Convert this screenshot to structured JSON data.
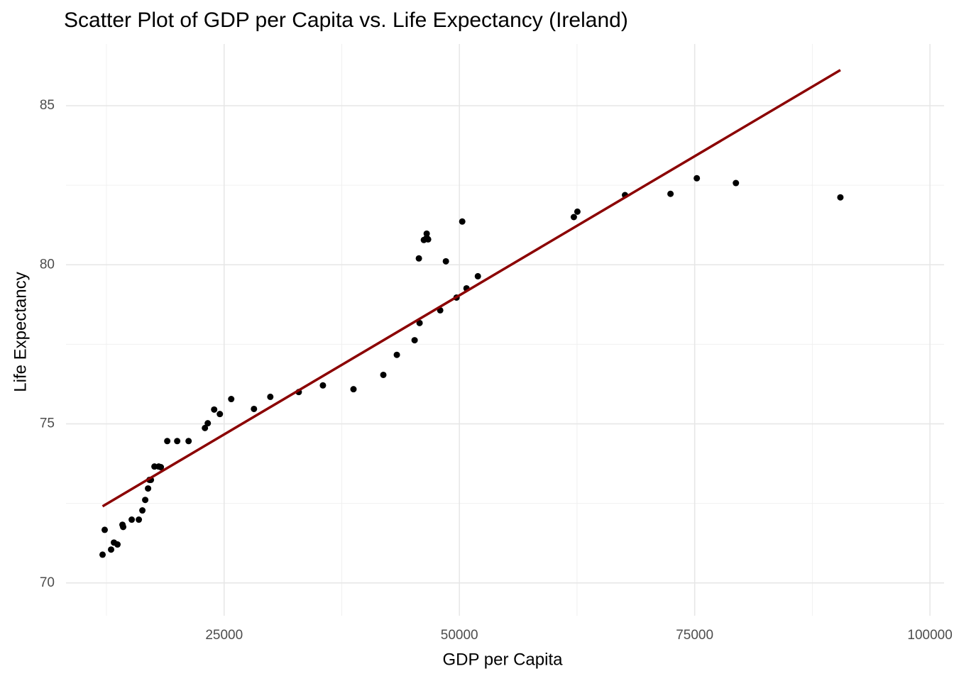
{
  "chart_data": {
    "type": "scatter",
    "title": "Scatter Plot of GDP per Capita vs. Life Expectancy (Ireland)",
    "x_label": "GDP per Capita",
    "y_label": "Life Expectancy",
    "xlim": [
      8200,
      101500
    ],
    "ylim": [
      68.97,
      86.94
    ],
    "xticks": [
      25000,
      50000,
      75000,
      100000
    ],
    "yticks": [
      70,
      75,
      80,
      85
    ],
    "x_minor_ticks": [
      12500,
      37500,
      62500,
      87500
    ],
    "y_minor_ticks": [
      72.5,
      77.5,
      82.5
    ],
    "grid": true,
    "series": [
      {
        "color": "#000000",
        "x": [
          12085,
          12311,
          12991,
          13293,
          13670,
          14199,
          14275,
          15181,
          15937,
          16314,
          16616,
          16918,
          17069,
          17221,
          17598,
          18051,
          18278,
          18958,
          20015,
          21224,
          22961,
          23263,
          23943,
          24547,
          25755,
          28172,
          29909,
          32931,
          35498,
          38746,
          41918,
          43353,
          45242,
          45695,
          45770,
          46224,
          46526,
          46677,
          46526,
          47961,
          48565,
          49698,
          50302,
          50755,
          51964,
          62160,
          62538,
          67598,
          72432,
          75227,
          79381,
          90483
        ],
        "values": [
          70.89,
          71.67,
          71.05,
          71.27,
          71.21,
          71.83,
          71.76,
          71.99,
          71.99,
          72.28,
          72.61,
          72.97,
          73.24,
          73.24,
          73.66,
          73.66,
          73.64,
          74.46,
          74.46,
          74.46,
          74.87,
          75.02,
          75.45,
          75.31,
          75.78,
          75.47,
          75.85,
          76.0,
          76.21,
          76.09,
          76.54,
          77.17,
          77.63,
          80.2,
          78.17,
          80.78,
          80.85,
          80.8,
          80.98,
          78.57,
          80.11,
          78.97,
          81.36,
          79.26,
          79.64,
          81.5,
          81.67,
          82.19,
          82.23,
          82.72,
          82.57,
          82.12
        ]
      }
    ],
    "trend_line": {
      "color": "#8b0000",
      "x": [
        12085,
        90483
      ],
      "values": [
        72.41,
        86.12
      ]
    }
  }
}
